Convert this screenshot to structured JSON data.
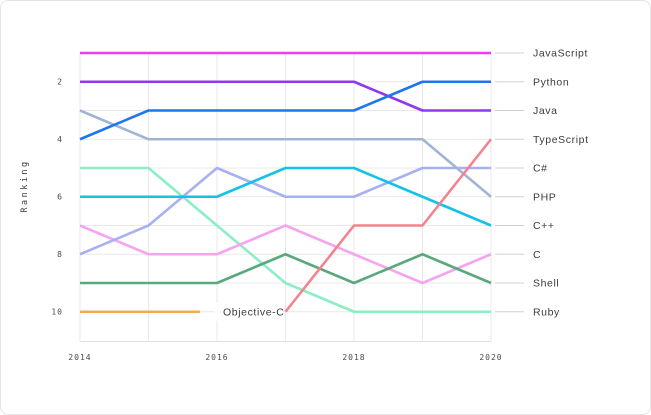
{
  "chart_data": {
    "type": "line",
    "subtype": "bump-ranking",
    "title": "",
    "xlabel": "",
    "ylabel": "Ranking",
    "x": [
      2014,
      2015,
      2016,
      2017,
      2018,
      2019,
      2020
    ],
    "x_ticks": [
      2014,
      2016,
      2018,
      2020
    ],
    "y_ticks": [
      2,
      4,
      6,
      8,
      10
    ],
    "ylim": [
      1,
      10
    ],
    "y_inverted": true,
    "grid": true,
    "legend_position": "right",
    "series": [
      {
        "name": "JavaScript",
        "color": "#ee3df2",
        "values": [
          1,
          1,
          1,
          1,
          1,
          1,
          1
        ]
      },
      {
        "name": "Python",
        "color": "#1c77ee",
        "values": [
          4,
          3,
          3,
          3,
          3,
          2,
          2
        ]
      },
      {
        "name": "Java",
        "color": "#9238ec",
        "values": [
          2,
          2,
          2,
          2,
          2,
          3,
          3
        ]
      },
      {
        "name": "TypeScript",
        "color": "#f5828c",
        "values": [
          null,
          null,
          null,
          10,
          7,
          7,
          4
        ]
      },
      {
        "name": "C#",
        "color": "#a7b1f2",
        "values": [
          8,
          7,
          5,
          6,
          6,
          5,
          5
        ]
      },
      {
        "name": "PHP",
        "color": "#a2b4d4",
        "values": [
          3,
          4,
          4,
          4,
          4,
          4,
          6
        ]
      },
      {
        "name": "C++",
        "color": "#15c2e5",
        "values": [
          6,
          6,
          6,
          5,
          5,
          6,
          7
        ]
      },
      {
        "name": "C",
        "color": "#f5a4f2",
        "values": [
          7,
          8,
          8,
          7,
          8,
          9,
          8
        ]
      },
      {
        "name": "Shell",
        "color": "#5aa87b",
        "values": [
          9,
          9,
          9,
          8,
          9,
          8,
          9
        ]
      },
      {
        "name": "Ruby",
        "color": "#8beec4",
        "values": [
          5,
          5,
          7,
          9,
          10,
          10,
          10
        ]
      },
      {
        "name": "Objective-C",
        "color": "#f3aa53",
        "values": [
          10,
          10,
          null,
          null,
          null,
          null,
          null
        ],
        "line_end": {
          "x": 2015.75,
          "rank": 10
        },
        "inline_label": "Objective-C"
      }
    ],
    "right_labels": [
      "JavaScript",
      "Python",
      "Java",
      "TypeScript",
      "C#",
      "PHP",
      "C++",
      "C",
      "Shell",
      "Ruby"
    ],
    "draw_order": [
      "Objective-C",
      "Ruby",
      "C",
      "Shell",
      "C#",
      "C++",
      "PHP",
      "Java",
      "Python",
      "TypeScript",
      "JavaScript"
    ],
    "colors": {
      "grid": "#e9e9e9",
      "axis_line": "#e0e0e0",
      "leader_line": "#d0d0d0",
      "tick_text": "#4b4b4b",
      "label_text": "#3b3b3b",
      "background": "#ffffff",
      "card_border": "#e5e5e5"
    }
  }
}
